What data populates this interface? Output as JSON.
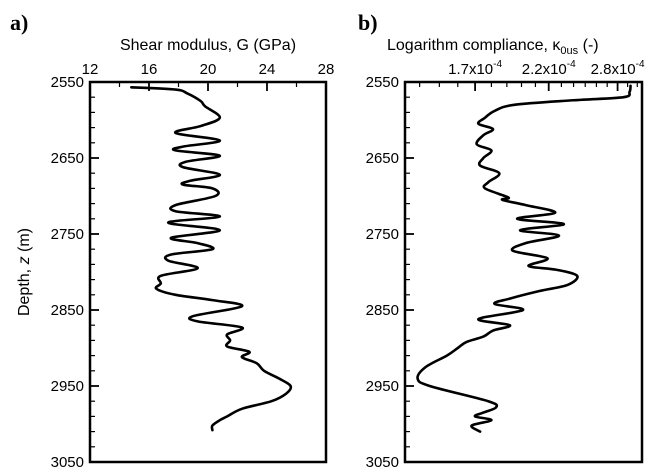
{
  "chart_data": [
    {
      "type": "line",
      "panel_label": "a)",
      "xlabel": "Shear modulus, G (GPa)",
      "ylabel_prefix": "Depth, ",
      "ylabel_var": "z",
      "ylabel_suffix": " (m)",
      "xlim": [
        12,
        28
      ],
      "ylim": [
        2550,
        3050
      ],
      "y_inverted": true,
      "x_ticks": [
        12,
        16,
        20,
        24,
        28
      ],
      "x_tick_labels": [
        "12",
        "16",
        "20",
        "24",
        "28"
      ],
      "y_ticks": [
        2550,
        2650,
        2750,
        2850,
        2950,
        3050
      ],
      "y_tick_labels": [
        "2550",
        "2650",
        "2750",
        "2850",
        "2950",
        "3050"
      ],
      "grid": false,
      "series": [
        {
          "x": [
            14.8,
            17.8,
            18.6,
            19.5,
            19.8,
            20.8,
            19.5,
            17.8,
            20.8,
            18.3,
            17.8,
            20.8,
            18.5,
            18.3,
            20.8,
            18.8,
            18.3,
            20.3,
            20.5,
            17.8,
            17.8,
            20.8,
            17.3,
            20.8,
            17.5,
            19.3,
            20.3,
            17.5,
            17.3,
            19.3,
            16.8,
            16.8,
            16.5,
            17.8,
            20.3,
            22.3,
            19.0,
            19.3,
            22.3,
            21.3,
            21.5,
            21.3,
            22.8,
            22.3,
            23.3,
            23.8,
            24.8,
            25.6,
            25.3,
            24.3,
            22.3,
            21.3,
            20.8,
            20.3,
            20.3
          ],
          "y": [
            2557,
            2560,
            2565,
            2575,
            2582,
            2597,
            2608,
            2617,
            2627,
            2635,
            2640,
            2647,
            2655,
            2662,
            2672,
            2680,
            2685,
            2690,
            2700,
            2712,
            2720,
            2727,
            2735,
            2745,
            2755,
            2762,
            2770,
            2777,
            2785,
            2795,
            2805,
            2815,
            2822,
            2830,
            2837,
            2845,
            2858,
            2865,
            2873,
            2882,
            2890,
            2898,
            2905,
            2912,
            2920,
            2930,
            2940,
            2950,
            2960,
            2970,
            2980,
            2990,
            2995,
            3002,
            3008
          ]
        }
      ]
    },
    {
      "type": "line",
      "panel_label": "b)",
      "xlabel_prefix": "Logarithm compliance, ",
      "xlabel_kappa": "κ",
      "xlabel_sub": "0us",
      "xlabel_suffix": " (-)",
      "x_scale": "log",
      "xlim": [
        0.000133,
        0.000305
      ],
      "ylim": [
        2550,
        3050
      ],
      "y_inverted": true,
      "x_ticks": [
        0.00017,
        0.00022,
        0.00028
      ],
      "x_tick_mantissa": [
        "1.7x10",
        "2.2x10",
        "2.8x10"
      ],
      "x_tick_exponent": [
        "-4",
        "-4",
        "-4"
      ],
      "y_ticks": [
        2550,
        2650,
        2750,
        2850,
        2950,
        3050
      ],
      "y_tick_labels": [
        "2550",
        "2650",
        "2750",
        "2850",
        "2950",
        "3050"
      ],
      "grid": false,
      "series": [
        {
          "x": [
            0.000293,
            0.000292,
            0.000286,
            0.00024,
            0.000195,
            0.000182,
            0.000176,
            0.000172,
            0.000181,
            0.000175,
            0.000171,
            0.00018,
            0.000175,
            0.000173,
            0.000185,
            0.000178,
            0.000176,
            0.000191,
            0.000187,
            0.000203,
            0.000225,
            0.000197,
            0.000232,
            0.000199,
            0.000228,
            0.000203,
            0.000194,
            0.000219,
            0.000205,
            0.000226,
            0.000243,
            0.000235,
            0.000213,
            0.000192,
            0.000182,
            0.000201,
            0.000172,
            0.000192,
            0.000181,
            0.000175,
            0.000165,
            0.00016,
            0.000154,
            0.000143,
            0.000139,
            0.000145,
            0.000178,
            0.000183,
            0.000175,
            0.00017,
            0.00018,
            0.000168,
            0.000173
          ],
          "y": [
            2555,
            2563,
            2570,
            2574,
            2580,
            2588,
            2597,
            2605,
            2612,
            2620,
            2632,
            2640,
            2650,
            2660,
            2670,
            2682,
            2690,
            2702,
            2705,
            2712,
            2722,
            2730,
            2737,
            2745,
            2752,
            2762,
            2772,
            2782,
            2792,
            2797,
            2805,
            2817,
            2825,
            2835,
            2842,
            2850,
            2862,
            2870,
            2877,
            2885,
            2892,
            2900,
            2910,
            2925,
            2940,
            2950,
            2970,
            2978,
            2985,
            2990,
            2995,
            3002,
            3010
          ]
        }
      ]
    }
  ]
}
